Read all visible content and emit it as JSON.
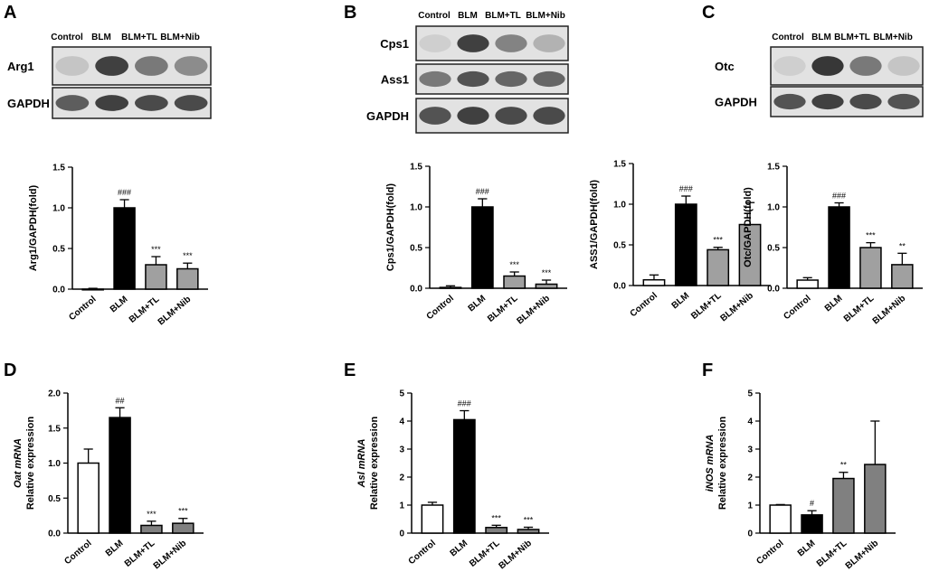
{
  "panel_labels": [
    "A",
    "B",
    "C",
    "D",
    "E",
    "F"
  ],
  "blots": [
    {
      "panel": "A",
      "lanes": [
        "Control",
        "BLM",
        "BLM+TL",
        "BLM+Nib"
      ],
      "proteins": [
        "Arg1",
        "GAPDH"
      ],
      "intensities": [
        [
          0.15,
          0.85,
          0.55,
          0.45
        ],
        [
          0.7,
          0.85,
          0.8,
          0.8
        ]
      ]
    },
    {
      "panel": "B",
      "lanes": [
        "Control",
        "BLM",
        "BLM+TL",
        "BLM+Nib"
      ],
      "proteins": [
        "Cps1",
        "Ass1",
        "GAPDH"
      ],
      "intensities": [
        [
          0.1,
          0.85,
          0.5,
          0.25
        ],
        [
          0.55,
          0.75,
          0.65,
          0.65
        ],
        [
          0.75,
          0.85,
          0.8,
          0.8
        ]
      ]
    },
    {
      "panel": "C",
      "lanes": [
        "Control",
        "BLM",
        "BLM+TL",
        "BLM+Nib"
      ],
      "proteins": [
        "Otc",
        "GAPDH"
      ],
      "intensities": [
        [
          0.1,
          0.9,
          0.55,
          0.15
        ],
        [
          0.75,
          0.85,
          0.8,
          0.75
        ]
      ]
    }
  ],
  "chart_data": [
    {
      "panel": "A",
      "type": "bar",
      "categories": [
        "Control",
        "BLM",
        "BLM+TL",
        "BLM+Nib"
      ],
      "values": [
        0.0,
        1.0,
        0.3,
        0.25
      ],
      "errors": [
        0.01,
        0.1,
        0.1,
        0.07
      ],
      "annotations": [
        "",
        "###",
        "***",
        "***"
      ],
      "ylabel": "Arg1/GAPDH(fold)",
      "ylim": [
        0,
        1.5
      ],
      "yticks": [
        "0.0",
        "0.5",
        "1.0",
        "1.5"
      ],
      "colors": [
        "#ffffff",
        "#000000",
        "#a0a0a0",
        "#a0a0a0"
      ]
    },
    {
      "panel": "B1",
      "type": "bar",
      "categories": [
        "Control",
        "BLM",
        "BLM+TL",
        "BLM+Nib"
      ],
      "values": [
        0.01,
        1.0,
        0.15,
        0.05
      ],
      "errors": [
        0.02,
        0.1,
        0.05,
        0.05
      ],
      "annotations": [
        "",
        "###",
        "***",
        "***"
      ],
      "ylabel": "Cps1/GAPDH(fold)",
      "ylim": [
        0,
        1.5
      ],
      "yticks": [
        "0.0",
        "0.5",
        "1.0",
        "1.5"
      ],
      "colors": [
        "#ffffff",
        "#000000",
        "#a0a0a0",
        "#a0a0a0"
      ]
    },
    {
      "panel": "B2",
      "type": "bar",
      "categories": [
        "Control",
        "BLM",
        "BLM+TL",
        "BLM+Nib"
      ],
      "values": [
        0.07,
        1.0,
        0.44,
        0.75
      ],
      "errors": [
        0.06,
        0.1,
        0.03,
        0.27
      ],
      "annotations": [
        "",
        "###",
        "***",
        ""
      ],
      "ylabel": "ASS1/GAPDH(fold)",
      "ylim": [
        0,
        1.5
      ],
      "yticks": [
        "0.0",
        "0.5",
        "1.0",
        "1.5"
      ],
      "colors": [
        "#ffffff",
        "#000000",
        "#a0a0a0",
        "#a0a0a0"
      ]
    },
    {
      "panel": "C",
      "type": "bar",
      "categories": [
        "Control",
        "BLM",
        "BLM+TL",
        "BLM+Nib"
      ],
      "values": [
        0.1,
        1.0,
        0.5,
        0.29
      ],
      "errors": [
        0.03,
        0.05,
        0.06,
        0.14
      ],
      "annotations": [
        "",
        "###",
        "***",
        "**"
      ],
      "ylabel": "Otc/GAPDH(fold)",
      "ylim": [
        0,
        1.5
      ],
      "yticks": [
        "0.0",
        "0.5",
        "1.0",
        "1.5"
      ],
      "colors": [
        "#ffffff",
        "#000000",
        "#a0a0a0",
        "#a0a0a0"
      ]
    },
    {
      "panel": "D",
      "type": "bar",
      "categories": [
        "Control",
        "BLM",
        "BLM+TL",
        "BLM+Nib"
      ],
      "values": [
        1.0,
        1.65,
        0.11,
        0.14
      ],
      "errors": [
        0.2,
        0.14,
        0.06,
        0.07
      ],
      "annotations": [
        "",
        "##",
        "***",
        "***"
      ],
      "ylabel_gene": "Oat",
      "ylabel_gene2": " mRNA",
      "ylabel2": "Relative expression",
      "ylim": [
        0,
        2.0
      ],
      "yticks": [
        "0.0",
        "0.5",
        "1.0",
        "1.5",
        "2.0"
      ],
      "colors": [
        "#ffffff",
        "#000000",
        "#808080",
        "#808080"
      ]
    },
    {
      "panel": "E",
      "type": "bar",
      "categories": [
        "Control",
        "BLM",
        "BLM+TL",
        "BLM+Nib"
      ],
      "values": [
        1.0,
        4.05,
        0.2,
        0.13
      ],
      "errors": [
        0.1,
        0.32,
        0.08,
        0.08
      ],
      "annotations": [
        "",
        "###",
        "***",
        "***"
      ],
      "ylabel_gene": "Asl",
      "ylabel_gene2": " mRNA",
      "ylabel2": "Relative expression",
      "ylim": [
        0,
        5
      ],
      "yticks": [
        "0",
        "1",
        "2",
        "3",
        "4",
        "5"
      ],
      "colors": [
        "#ffffff",
        "#000000",
        "#808080",
        "#808080"
      ]
    },
    {
      "panel": "F",
      "type": "bar",
      "categories": [
        "Control",
        "BLM",
        "BLM+TL",
        "BLM+Nib"
      ],
      "values": [
        1.0,
        0.65,
        1.95,
        2.45
      ],
      "errors": [
        0.02,
        0.15,
        0.22,
        1.55
      ],
      "annotations": [
        "",
        "#",
        "**",
        ""
      ],
      "ylabel_gene": "iNOS",
      "ylabel_gene2": " mRNA",
      "ylabel2": "Relative expression",
      "ylim": [
        0,
        5
      ],
      "yticks": [
        "0",
        "1",
        "2",
        "3",
        "4",
        "5"
      ],
      "colors": [
        "#ffffff",
        "#000000",
        "#808080",
        "#808080"
      ]
    }
  ]
}
